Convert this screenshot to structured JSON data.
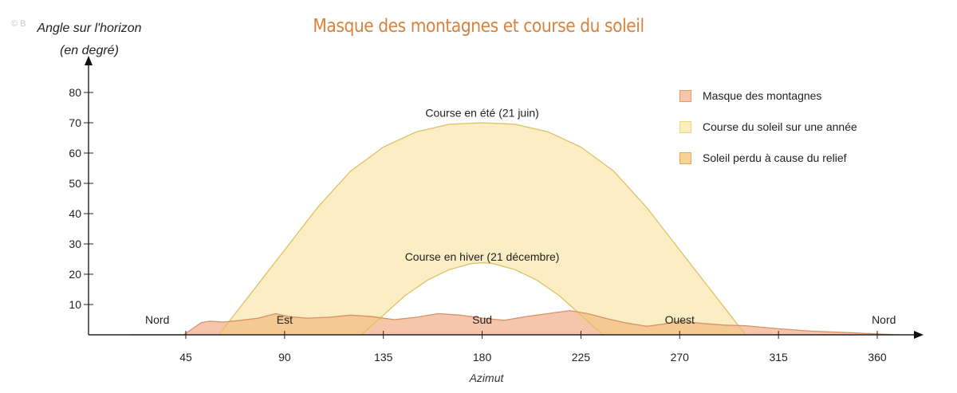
{
  "watermark": "© B",
  "chart_data": {
    "type": "area",
    "title": "Masque des montagnes et course du soleil",
    "ylabel_line1": "Angle sur l'horizon",
    "ylabel_line2": "(en degré)",
    "xlabel": "Azimut",
    "xlim": [
      20,
      370
    ],
    "ylim": [
      0,
      90
    ],
    "xticks": [
      45,
      90,
      135,
      180,
      225,
      270,
      315,
      360
    ],
    "yticks": [
      10,
      20,
      30,
      40,
      50,
      60,
      70,
      80
    ],
    "compass": [
      {
        "label": "Nord",
        "x": 32
      },
      {
        "label": "Est",
        "x": 90
      },
      {
        "label": "Sud",
        "x": 180
      },
      {
        "label": "Ouest",
        "x": 270
      },
      {
        "label": "Nord",
        "x": 363
      }
    ],
    "summer": {
      "name": "Course en été (21 juin)",
      "x": [
        60,
        75,
        90,
        105,
        120,
        135,
        150,
        165,
        180,
        195,
        210,
        225,
        240,
        255,
        270,
        285,
        300
      ],
      "y": [
        0,
        14,
        28,
        42,
        54,
        62,
        67,
        69.5,
        70,
        69.5,
        67,
        62,
        54,
        42,
        28,
        14,
        0
      ]
    },
    "winter": {
      "name": "Course en hiver (21 décembre)",
      "x": [
        125,
        135,
        145,
        155,
        165,
        175,
        180,
        185,
        195,
        205,
        215,
        225,
        235
      ],
      "y": [
        0,
        6.5,
        13,
        18,
        21.5,
        23.5,
        23.8,
        23.5,
        21.5,
        18,
        13,
        6.5,
        0
      ]
    },
    "mask": {
      "x": [
        20,
        44,
        48,
        52,
        56,
        62,
        70,
        78,
        86,
        92,
        100,
        110,
        120,
        130,
        140,
        150,
        160,
        170,
        180,
        190,
        200,
        210,
        220,
        228,
        236,
        245,
        255,
        262,
        270,
        280,
        290,
        300,
        315,
        330,
        345,
        360,
        370
      ],
      "y": [
        0,
        0,
        2,
        4,
        4.5,
        4.2,
        4.8,
        5.5,
        7,
        6,
        5.5,
        5.8,
        6.5,
        6,
        5,
        5.8,
        7,
        6.5,
        5.5,
        4.8,
        6,
        7,
        8,
        7,
        5.5,
        4,
        2.8,
        3.5,
        4.5,
        3.8,
        3.2,
        3,
        2,
        1.2,
        0.8,
        0.3,
        0
      ]
    },
    "annotations": [
      {
        "label": "Course en été (21 juin)",
        "x": 180,
        "y": 72
      },
      {
        "label": "Course en hiver (21 décembre)",
        "x": 180,
        "y": 24.5
      }
    ],
    "legend": [
      {
        "label": "Masque des montagnes",
        "fill": "#f7c6a8",
        "stroke": "#e39a6e"
      },
      {
        "label": "Course du soleil sur une année",
        "fill": "#fbefc2",
        "stroke": "#e9d67a"
      },
      {
        "label": "Soleil perdu à cause du relief",
        "fill": "#f8d294",
        "stroke": "#e3ad5b"
      }
    ],
    "colors": {
      "sun_fill": "#fbeec4",
      "sun_stroke": "#ddc066",
      "mask_fill": "#f6c3a8",
      "mask_stroke": "#d89168",
      "lost_fill": "#f4c98f",
      "title": "#d7823d"
    }
  }
}
